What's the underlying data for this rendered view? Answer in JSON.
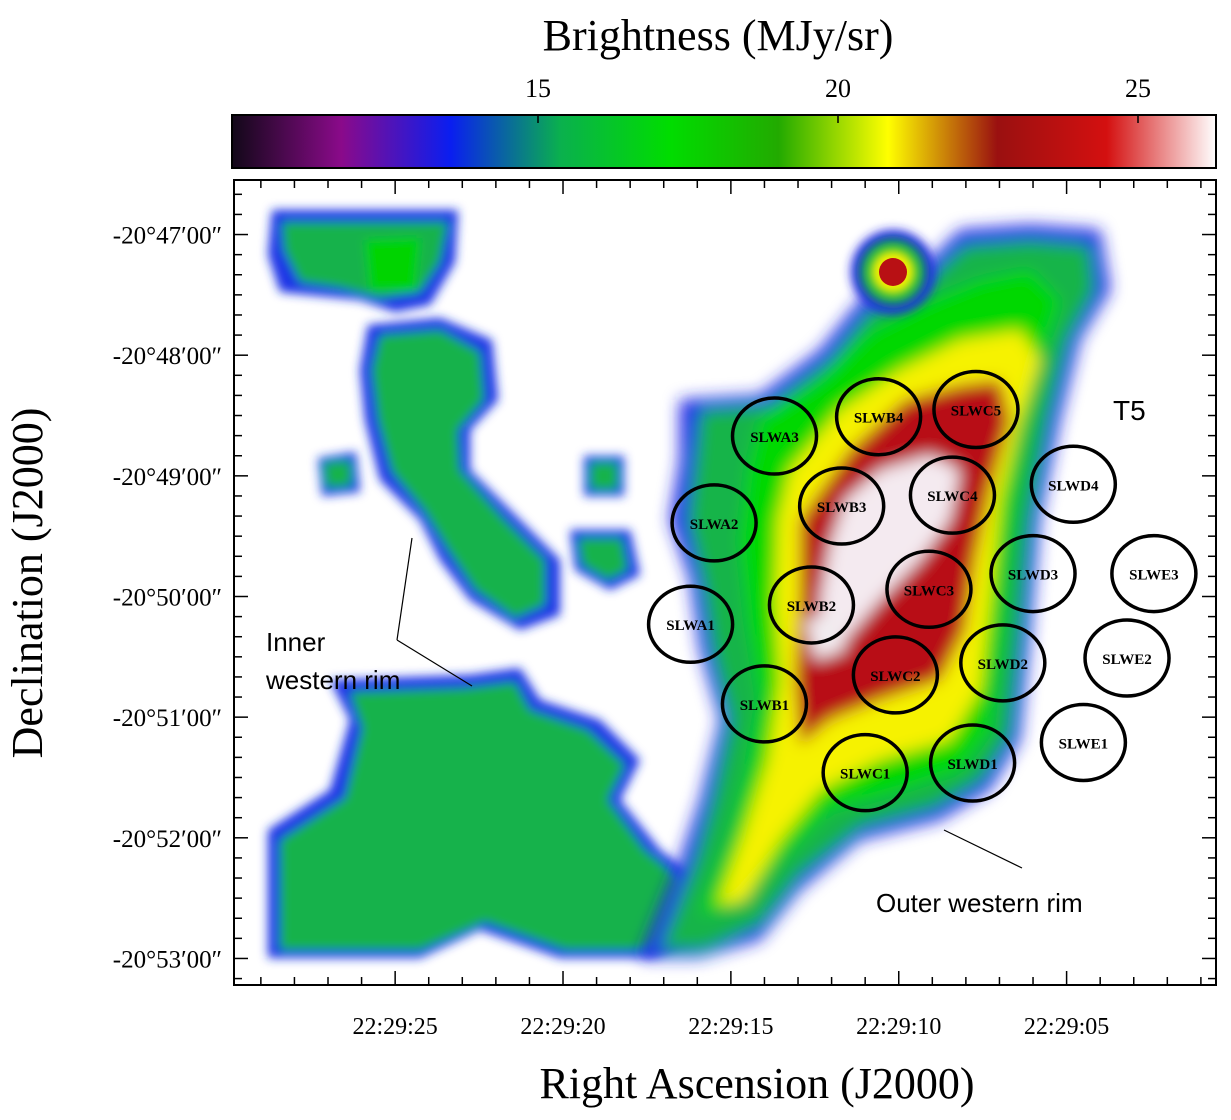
{
  "chart_data": {
    "type": "heatmap",
    "title": "Brightness (MJy/sr)",
    "xlabel": "Right Ascension (J2000)",
    "ylabel": "Declination (J2000)",
    "colorbar": {
      "ticks": [
        "15",
        "20",
        "25"
      ],
      "tick_values": [
        15,
        20,
        25
      ],
      "range": [
        9.9,
        26.3
      ],
      "colors": [
        "#120818",
        "#8a0a8a",
        "#0a1ef0",
        "#0ab04e",
        "#00dd00",
        "#22aa00",
        "#ffff00",
        "#9a1010",
        "#d41010",
        "#ffffff"
      ]
    },
    "x_ticks": [
      "22:29:25",
      "22:29:20",
      "22:29:15",
      "22:29:10",
      "22:29:05"
    ],
    "x_tick_seconds": [
      25,
      20,
      15,
      10,
      5
    ],
    "x_range_seconds": [
      29.8,
      0.55
    ],
    "y_ticks": [
      "-20°47′00″",
      "-20°48′00″",
      "-20°49′00″",
      "-20°50′00″",
      "-20°51′00″",
      "-20°52′00″",
      "-20°53′00″"
    ],
    "y_tick_arcmin": [
      47,
      48,
      49,
      50,
      51,
      52,
      53
    ],
    "y_range_arcmin": [
      46.548,
      53.22
    ],
    "map_label": "T5",
    "annotations": [
      {
        "text": [
          "Inner",
          "western rim"
        ]
      },
      {
        "text": [
          "Outer western rim"
        ]
      }
    ],
    "apertures": [
      {
        "label": "SLWA1",
        "ra": 16.2,
        "dec": 50.23
      },
      {
        "label": "SLWA2",
        "ra": 15.5,
        "dec": 49.39
      },
      {
        "label": "SLWA3",
        "ra": 13.7,
        "dec": 48.67
      },
      {
        "label": "SLWB1",
        "ra": 14.0,
        "dec": 50.89
      },
      {
        "label": "SLWB2",
        "ra": 12.6,
        "dec": 50.07
      },
      {
        "label": "SLWB3",
        "ra": 11.7,
        "dec": 49.25
      },
      {
        "label": "SLWB4",
        "ra": 10.6,
        "dec": 48.51
      },
      {
        "label": "SLWC1",
        "ra": 11.0,
        "dec": 51.46
      },
      {
        "label": "SLWC2",
        "ra": 10.1,
        "dec": 50.65
      },
      {
        "label": "SLWC3",
        "ra": 9.1,
        "dec": 49.94
      },
      {
        "label": "SLWC4",
        "ra": 8.4,
        "dec": 49.16
      },
      {
        "label": "SLWC5",
        "ra": 7.7,
        "dec": 48.45
      },
      {
        "label": "SLWD1",
        "ra": 7.8,
        "dec": 51.38
      },
      {
        "label": "SLWD2",
        "ra": 6.9,
        "dec": 50.55
      },
      {
        "label": "SLWD3",
        "ra": 6.0,
        "dec": 49.81
      },
      {
        "label": "SLWD4",
        "ra": 4.8,
        "dec": 49.07
      },
      {
        "label": "SLWE1",
        "ra": 4.5,
        "dec": 51.21
      },
      {
        "label": "SLWE2",
        "ra": 3.2,
        "dec": 50.51
      },
      {
        "label": "SLWE3",
        "ra": 2.4,
        "dec": 49.81
      }
    ],
    "grid": false,
    "legend": "none"
  }
}
